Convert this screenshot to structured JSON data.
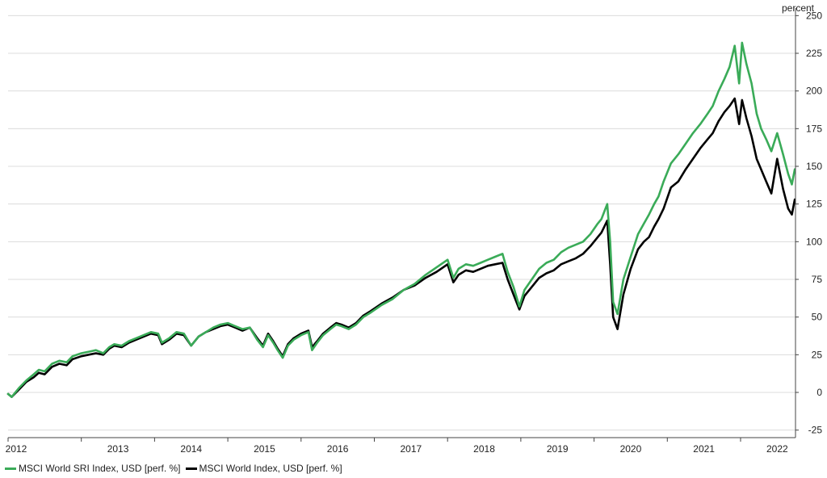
{
  "chart_data": {
    "type": "line",
    "ylabel": "percent",
    "ylim": [
      -30,
      255
    ],
    "yticks": [
      250,
      225,
      200,
      175,
      150,
      125,
      100,
      75,
      50,
      25,
      0,
      -25
    ],
    "xlim": [
      2012.0,
      2022.75
    ],
    "xticks": [
      "2012",
      "2013",
      "2014",
      "2015",
      "2016",
      "2017",
      "2018",
      "2019",
      "2020",
      "2021",
      "2022"
    ],
    "grid": true,
    "legend_position": "bottom-left",
    "colors": {
      "MSCI World SRI Index, USD [perf. %]": "#3aab58",
      "MSCI World Index, USD [perf. %]": "#000000"
    },
    "series": [
      {
        "name": "MSCI World SRI Index, USD [perf. %]",
        "x": [
          2012.0,
          2012.05,
          2012.15,
          2012.25,
          2012.35,
          2012.42,
          2012.5,
          2012.6,
          2012.7,
          2012.8,
          2012.88,
          2013.0,
          2013.1,
          2013.2,
          2013.3,
          2013.38,
          2013.45,
          2013.55,
          2013.65,
          2013.75,
          2013.85,
          2013.95,
          2014.05,
          2014.1,
          2014.2,
          2014.3,
          2014.4,
          2014.5,
          2014.6,
          2014.7,
          2014.8,
          2014.9,
          2015.0,
          2015.1,
          2015.2,
          2015.3,
          2015.4,
          2015.48,
          2015.55,
          2015.62,
          2015.68,
          2015.75,
          2015.82,
          2015.9,
          2016.0,
          2016.1,
          2016.15,
          2016.22,
          2016.3,
          2016.4,
          2016.48,
          2016.55,
          2016.65,
          2016.75,
          2016.85,
          2016.95,
          2017.1,
          2017.25,
          2017.4,
          2017.55,
          2017.7,
          2017.85,
          2018.0,
          2018.08,
          2018.15,
          2018.25,
          2018.35,
          2018.45,
          2018.55,
          2018.65,
          2018.75,
          2018.82,
          2018.9,
          2018.98,
          2019.05,
          2019.15,
          2019.25,
          2019.35,
          2019.45,
          2019.55,
          2019.65,
          2019.75,
          2019.85,
          2019.95,
          2020.05,
          2020.1,
          2020.14,
          2020.18,
          2020.22,
          2020.26,
          2020.32,
          2020.4,
          2020.5,
          2020.6,
          2020.68,
          2020.75,
          2020.82,
          2020.88,
          2020.95,
          2021.05,
          2021.15,
          2021.25,
          2021.35,
          2021.45,
          2021.55,
          2021.62,
          2021.7,
          2021.78,
          2021.85,
          2021.92,
          2021.98,
          2022.02,
          2022.08,
          2022.15,
          2022.22,
          2022.28,
          2022.35,
          2022.42,
          2022.5,
          2022.58,
          2022.65,
          2022.7,
          2022.74
        ],
        "values": [
          -1,
          -3,
          3,
          8,
          12,
          15,
          14,
          19,
          21,
          20,
          24,
          26,
          27,
          28,
          26,
          30,
          32,
          31,
          34,
          36,
          38,
          40,
          39,
          33,
          36,
          40,
          39,
          31,
          37,
          40,
          43,
          45,
          46,
          44,
          42,
          43,
          35,
          30,
          38,
          33,
          28,
          23,
          31,
          35,
          38,
          40,
          28,
          33,
          38,
          42,
          45,
          44,
          42,
          45,
          50,
          53,
          58,
          62,
          68,
          72,
          78,
          83,
          88,
          76,
          82,
          85,
          84,
          86,
          88,
          90,
          92,
          80,
          70,
          57,
          68,
          75,
          82,
          86,
          88,
          93,
          96,
          98,
          100,
          105,
          112,
          115,
          120,
          125,
          100,
          60,
          52,
          75,
          90,
          105,
          112,
          118,
          125,
          130,
          140,
          152,
          158,
          165,
          172,
          178,
          185,
          190,
          200,
          208,
          216,
          230,
          205,
          232,
          218,
          205,
          185,
          175,
          168,
          160,
          172,
          158,
          145,
          138,
          148
        ],
        "approximate": true
      },
      {
        "name": "MSCI World Index, USD [perf. %]",
        "x": [
          2012.0,
          2012.05,
          2012.15,
          2012.25,
          2012.35,
          2012.42,
          2012.5,
          2012.6,
          2012.7,
          2012.8,
          2012.88,
          2013.0,
          2013.1,
          2013.2,
          2013.3,
          2013.38,
          2013.45,
          2013.55,
          2013.65,
          2013.75,
          2013.85,
          2013.95,
          2014.05,
          2014.1,
          2014.2,
          2014.3,
          2014.4,
          2014.5,
          2014.6,
          2014.7,
          2014.8,
          2014.9,
          2015.0,
          2015.1,
          2015.2,
          2015.3,
          2015.4,
          2015.48,
          2015.55,
          2015.62,
          2015.68,
          2015.75,
          2015.82,
          2015.9,
          2016.0,
          2016.1,
          2016.15,
          2016.22,
          2016.3,
          2016.4,
          2016.48,
          2016.55,
          2016.65,
          2016.75,
          2016.85,
          2016.95,
          2017.1,
          2017.25,
          2017.4,
          2017.55,
          2017.7,
          2017.85,
          2018.0,
          2018.08,
          2018.15,
          2018.25,
          2018.35,
          2018.45,
          2018.55,
          2018.65,
          2018.75,
          2018.82,
          2018.9,
          2018.98,
          2019.05,
          2019.15,
          2019.25,
          2019.35,
          2019.45,
          2019.55,
          2019.65,
          2019.75,
          2019.85,
          2019.95,
          2020.05,
          2020.1,
          2020.14,
          2020.18,
          2020.22,
          2020.26,
          2020.32,
          2020.4,
          2020.5,
          2020.6,
          2020.68,
          2020.75,
          2020.82,
          2020.88,
          2020.95,
          2021.05,
          2021.15,
          2021.25,
          2021.35,
          2021.45,
          2021.55,
          2021.62,
          2021.7,
          2021.78,
          2021.85,
          2021.92,
          2021.98,
          2022.02,
          2022.08,
          2022.15,
          2022.22,
          2022.28,
          2022.35,
          2022.42,
          2022.5,
          2022.58,
          2022.65,
          2022.7,
          2022.74
        ],
        "values": [
          -1,
          -3,
          2,
          7,
          10,
          13,
          12,
          17,
          19,
          18,
          22,
          24,
          25,
          26,
          25,
          29,
          31,
          30,
          33,
          35,
          37,
          39,
          38,
          32,
          35,
          39,
          38,
          31,
          37,
          40,
          42,
          44,
          45,
          43,
          41,
          43,
          36,
          31,
          39,
          34,
          29,
          24,
          32,
          36,
          39,
          41,
          30,
          34,
          39,
          43,
          46,
          45,
          43,
          46,
          51,
          54,
          59,
          63,
          68,
          71,
          76,
          80,
          85,
          73,
          78,
          81,
          80,
          82,
          84,
          85,
          86,
          75,
          65,
          55,
          64,
          70,
          76,
          79,
          81,
          85,
          87,
          89,
          92,
          97,
          103,
          106,
          110,
          114,
          85,
          50,
          42,
          65,
          82,
          95,
          100,
          103,
          110,
          115,
          122,
          136,
          140,
          148,
          155,
          162,
          168,
          172,
          180,
          186,
          190,
          195,
          178,
          194,
          182,
          170,
          155,
          148,
          140,
          132,
          155,
          135,
          122,
          118,
          128
        ],
        "approximate": true
      }
    ]
  }
}
